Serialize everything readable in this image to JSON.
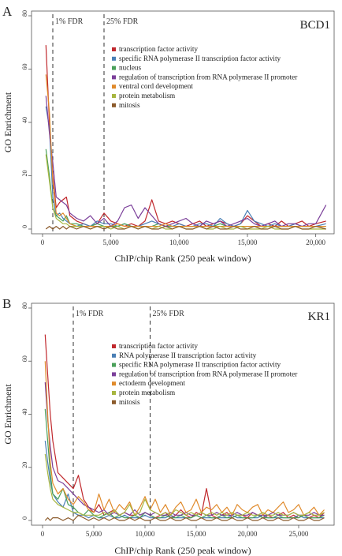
{
  "chart_data": [
    {
      "type": "line",
      "panel_letter": "A",
      "corner_label": "BCD1",
      "xlabel": "ChIP/chip Rank (250 peak window)",
      "ylabel": "GO Enrichment",
      "xlim": [
        0,
        21000
      ],
      "ylim": [
        0,
        80
      ],
      "xticks": [
        0,
        5000,
        10000,
        15000,
        20000
      ],
      "xtick_labels": [
        "0",
        "5,000",
        "10,000",
        "15,000",
        "20,000"
      ],
      "yticks": [
        0,
        20,
        40,
        60,
        80
      ],
      "ytick_labels": [
        "0",
        "20",
        "40",
        "60",
        "80"
      ],
      "grid": false,
      "legend_position": "top-right",
      "vlines": [
        {
          "x": 750,
          "label": "1% FDR"
        },
        {
          "x": 4500,
          "label": "25% FDR"
        }
      ],
      "x": [
        250,
        500,
        750,
        1000,
        1250,
        1500,
        1750,
        2000,
        2500,
        3000,
        3500,
        4000,
        4500,
        5000,
        5500,
        6000,
        6500,
        7000,
        7500,
        8000,
        8500,
        9000,
        9500,
        10000,
        10500,
        11000,
        11500,
        12000,
        12500,
        13000,
        13500,
        14000,
        14500,
        15000,
        15500,
        16000,
        16500,
        17000,
        17500,
        18000,
        18500,
        19000,
        19500,
        20000,
        20750
      ],
      "series": [
        {
          "name": "transcription factor activity",
          "color": "#c0282d",
          "values": [
            69,
            40,
            20,
            8,
            10,
            11,
            12,
            5,
            3,
            2,
            1,
            2,
            6,
            3,
            2,
            1,
            2,
            1,
            3,
            11,
            3,
            2,
            3,
            2,
            1,
            2,
            3,
            1,
            2,
            3,
            2,
            1,
            2,
            5,
            3,
            1,
            2,
            1,
            3,
            1,
            2,
            3,
            1,
            2,
            3
          ]
        },
        {
          "name": "specific RNA polymerase II transcription factor activity",
          "color": "#4a7fb5",
          "values": [
            46,
            38,
            12,
            5,
            6,
            4,
            3,
            2,
            1,
            2,
            1,
            3,
            2,
            2,
            1,
            2,
            1,
            1,
            2,
            3,
            2,
            1,
            1,
            2,
            1,
            1,
            2,
            2,
            1,
            4,
            2,
            1,
            2,
            7,
            3,
            2,
            1,
            2,
            1,
            1,
            2,
            1,
            1,
            1,
            2
          ]
        },
        {
          "name": "nucleus",
          "color": "#4aa05a",
          "values": [
            30,
            20,
            8,
            5,
            4,
            3,
            5,
            2,
            2,
            1,
            1,
            2,
            1,
            1,
            1,
            2,
            1,
            1,
            1,
            1,
            2,
            1,
            1,
            1,
            1,
            1,
            1,
            1,
            1,
            2,
            1,
            1,
            1,
            1,
            1,
            1,
            1,
            1,
            1,
            1,
            1,
            1,
            1,
            1,
            1
          ]
        },
        {
          "name": "regulation of transcription from RNA polymerase II promoter",
          "color": "#7b3f9a",
          "values": [
            50,
            36,
            25,
            12,
            11,
            10,
            9,
            6,
            4,
            3,
            5,
            2,
            4,
            1,
            3,
            8,
            9,
            4,
            8,
            5,
            2,
            1,
            2,
            3,
            4,
            2,
            1,
            3,
            2,
            3,
            1,
            2,
            3,
            4,
            2,
            1,
            2,
            3,
            1,
            2,
            2,
            1,
            2,
            2,
            9
          ]
        },
        {
          "name": "ventral cord development",
          "color": "#e08a2b",
          "values": [
            58,
            44,
            18,
            6,
            5,
            6,
            4,
            2,
            1,
            1,
            1,
            1,
            1,
            1,
            2,
            1,
            1,
            1,
            1,
            1,
            1,
            2,
            1,
            1,
            1,
            1,
            1,
            1,
            1,
            1,
            1,
            1,
            1,
            1,
            1,
            1,
            1,
            1,
            1,
            1,
            1,
            1,
            1,
            1,
            1
          ]
        },
        {
          "name": "protein metabolism",
          "color": "#a7b640",
          "values": [
            28,
            18,
            8,
            4,
            3,
            2,
            2,
            1,
            1,
            1,
            0,
            1,
            1,
            0,
            1,
            0,
            1,
            0,
            1,
            0,
            1,
            0,
            0,
            1,
            0,
            0,
            1,
            0,
            0,
            1,
            0,
            0,
            1,
            0,
            0,
            0,
            1,
            0,
            0,
            0,
            1,
            0,
            0,
            0,
            0
          ]
        },
        {
          "name": "mitosis",
          "color": "#8b5a2b",
          "values": [
            0,
            1,
            0,
            1,
            0,
            1,
            0,
            1,
            0,
            1,
            0,
            1,
            0,
            1,
            0,
            0,
            1,
            0,
            1,
            0,
            0,
            1,
            0,
            1,
            0,
            0,
            1,
            0,
            1,
            0,
            0,
            1,
            0,
            0,
            1,
            0,
            0,
            1,
            0,
            0,
            1,
            0,
            0,
            1,
            0
          ]
        }
      ]
    },
    {
      "type": "line",
      "panel_letter": "B",
      "corner_label": "KR1",
      "xlabel": "ChIP/chip Rank (250 peak window)",
      "ylabel": "GO Enrichment",
      "xlim": [
        0,
        28000
      ],
      "ylim": [
        0,
        80
      ],
      "xticks": [
        0,
        5000,
        10000,
        15000,
        20000,
        25000
      ],
      "xtick_labels": [
        "0",
        "5,000",
        "10,000",
        "15,000",
        "20,000",
        "25,000"
      ],
      "yticks": [
        0,
        20,
        40,
        60,
        80
      ],
      "ytick_labels": [
        "0",
        "20",
        "40",
        "60",
        "80"
      ],
      "grid": false,
      "legend_position": "top-right",
      "vlines": [
        {
          "x": 3000,
          "label": "1% FDR"
        },
        {
          "x": 10500,
          "label": "25% FDR"
        }
      ],
      "x": [
        250,
        500,
        750,
        1000,
        1500,
        2000,
        2500,
        3000,
        3500,
        4000,
        4500,
        5000,
        5500,
        6000,
        6500,
        7000,
        7500,
        8000,
        8500,
        9000,
        9500,
        10000,
        10500,
        11000,
        11500,
        12000,
        12500,
        13000,
        13500,
        14000,
        14500,
        15000,
        15500,
        16000,
        16500,
        17000,
        17500,
        18000,
        18500,
        19000,
        19500,
        20000,
        20500,
        21000,
        21500,
        22000,
        22500,
        23000,
        23500,
        24000,
        24500,
        25000,
        25500,
        26000,
        26500,
        27000,
        27500
      ],
      "series": [
        {
          "name": "transcription factor activity",
          "color": "#c0282d",
          "values": [
            70,
            55,
            40,
            30,
            18,
            16,
            14,
            12,
            17,
            8,
            5,
            3,
            6,
            2,
            3,
            4,
            2,
            3,
            2,
            2,
            1,
            3,
            2,
            1,
            2,
            3,
            1,
            2,
            4,
            2,
            1,
            3,
            2,
            12,
            2,
            1,
            2,
            3,
            1,
            2,
            2,
            1,
            3,
            2,
            1,
            2,
            1,
            2,
            3,
            1,
            2,
            1,
            2,
            1,
            2,
            1,
            3
          ]
        },
        {
          "name": "RNA polymerase II transcription factor activity",
          "color": "#4a7fb5",
          "values": [
            30,
            22,
            15,
            10,
            7,
            5,
            10,
            3,
            2,
            2,
            1,
            2,
            1,
            1,
            2,
            1,
            1,
            2,
            1,
            1,
            1,
            2,
            1,
            1,
            1,
            1,
            2,
            1,
            1,
            1,
            1,
            2,
            1,
            1,
            1,
            1,
            1,
            1,
            2,
            1,
            1,
            1,
            1,
            1,
            2,
            1,
            1,
            1,
            1,
            1,
            1,
            2,
            1,
            1,
            1,
            1,
            1
          ]
        },
        {
          "name": "specific RNA polymerase II transcription factor activity",
          "color": "#4aa05a",
          "values": [
            42,
            30,
            18,
            10,
            8,
            12,
            6,
            5,
            3,
            2,
            4,
            2,
            1,
            2,
            3,
            1,
            2,
            1,
            1,
            2,
            1,
            3,
            2,
            1,
            1,
            2,
            1,
            1,
            2,
            1,
            1,
            2,
            1,
            2,
            1,
            1,
            2,
            1,
            1,
            2,
            1,
            1,
            1,
            2,
            1,
            1,
            1,
            2,
            1,
            1,
            1,
            1,
            2,
            1,
            1,
            1,
            2
          ]
        },
        {
          "name": "regulation of transcription from RNA polymerase II promoter",
          "color": "#7b3f9a",
          "values": [
            52,
            38,
            28,
            20,
            15,
            14,
            12,
            10,
            8,
            6,
            5,
            4,
            3,
            4,
            2,
            3,
            2,
            3,
            2,
            4,
            2,
            3,
            2,
            3,
            2,
            2,
            3,
            2,
            2,
            3,
            2,
            2,
            3,
            2,
            2,
            3,
            2,
            2,
            2,
            3,
            2,
            2,
            3,
            2,
            2,
            2,
            3,
            2,
            2,
            2,
            3,
            2,
            2,
            2,
            3,
            2,
            2
          ]
        },
        {
          "name": "ectoderm development",
          "color": "#e08a2b",
          "values": [
            60,
            40,
            22,
            14,
            10,
            12,
            8,
            6,
            9,
            7,
            4,
            3,
            10,
            4,
            8,
            3,
            6,
            4,
            7,
            2,
            5,
            9,
            4,
            8,
            3,
            6,
            2,
            5,
            7,
            3,
            4,
            8,
            3,
            5,
            4,
            6,
            3,
            5,
            2,
            6,
            4,
            3,
            5,
            6,
            2,
            4,
            3,
            5,
            7,
            3,
            4,
            6,
            2,
            3,
            5,
            2,
            4
          ]
        },
        {
          "name": "protein metabolism",
          "color": "#a7b640",
          "values": [
            25,
            18,
            12,
            8,
            6,
            5,
            4,
            3,
            3,
            2,
            2,
            2,
            2,
            3,
            2,
            4,
            2,
            3,
            6,
            2,
            3,
            8,
            4,
            3,
            2,
            3,
            2,
            4,
            3,
            2,
            3,
            2,
            3,
            2,
            3,
            2,
            3,
            2,
            3,
            2,
            2,
            3,
            2,
            2,
            3,
            2,
            2,
            3,
            2,
            2,
            3,
            2,
            2,
            3,
            2,
            2,
            3
          ]
        },
        {
          "name": "mitosis",
          "color": "#8b5a2b",
          "values": [
            0,
            1,
            0,
            1,
            1,
            0,
            1,
            0,
            2,
            1,
            0,
            1,
            0,
            1,
            0,
            1,
            0,
            0,
            1,
            0,
            1,
            0,
            0,
            1,
            0,
            0,
            1,
            0,
            0,
            1,
            0,
            0,
            1,
            0,
            0,
            1,
            0,
            0,
            1,
            0,
            0,
            1,
            0,
            0,
            1,
            0,
            0,
            1,
            0,
            0,
            1,
            0,
            0,
            1,
            0,
            0,
            1
          ]
        }
      ]
    }
  ]
}
